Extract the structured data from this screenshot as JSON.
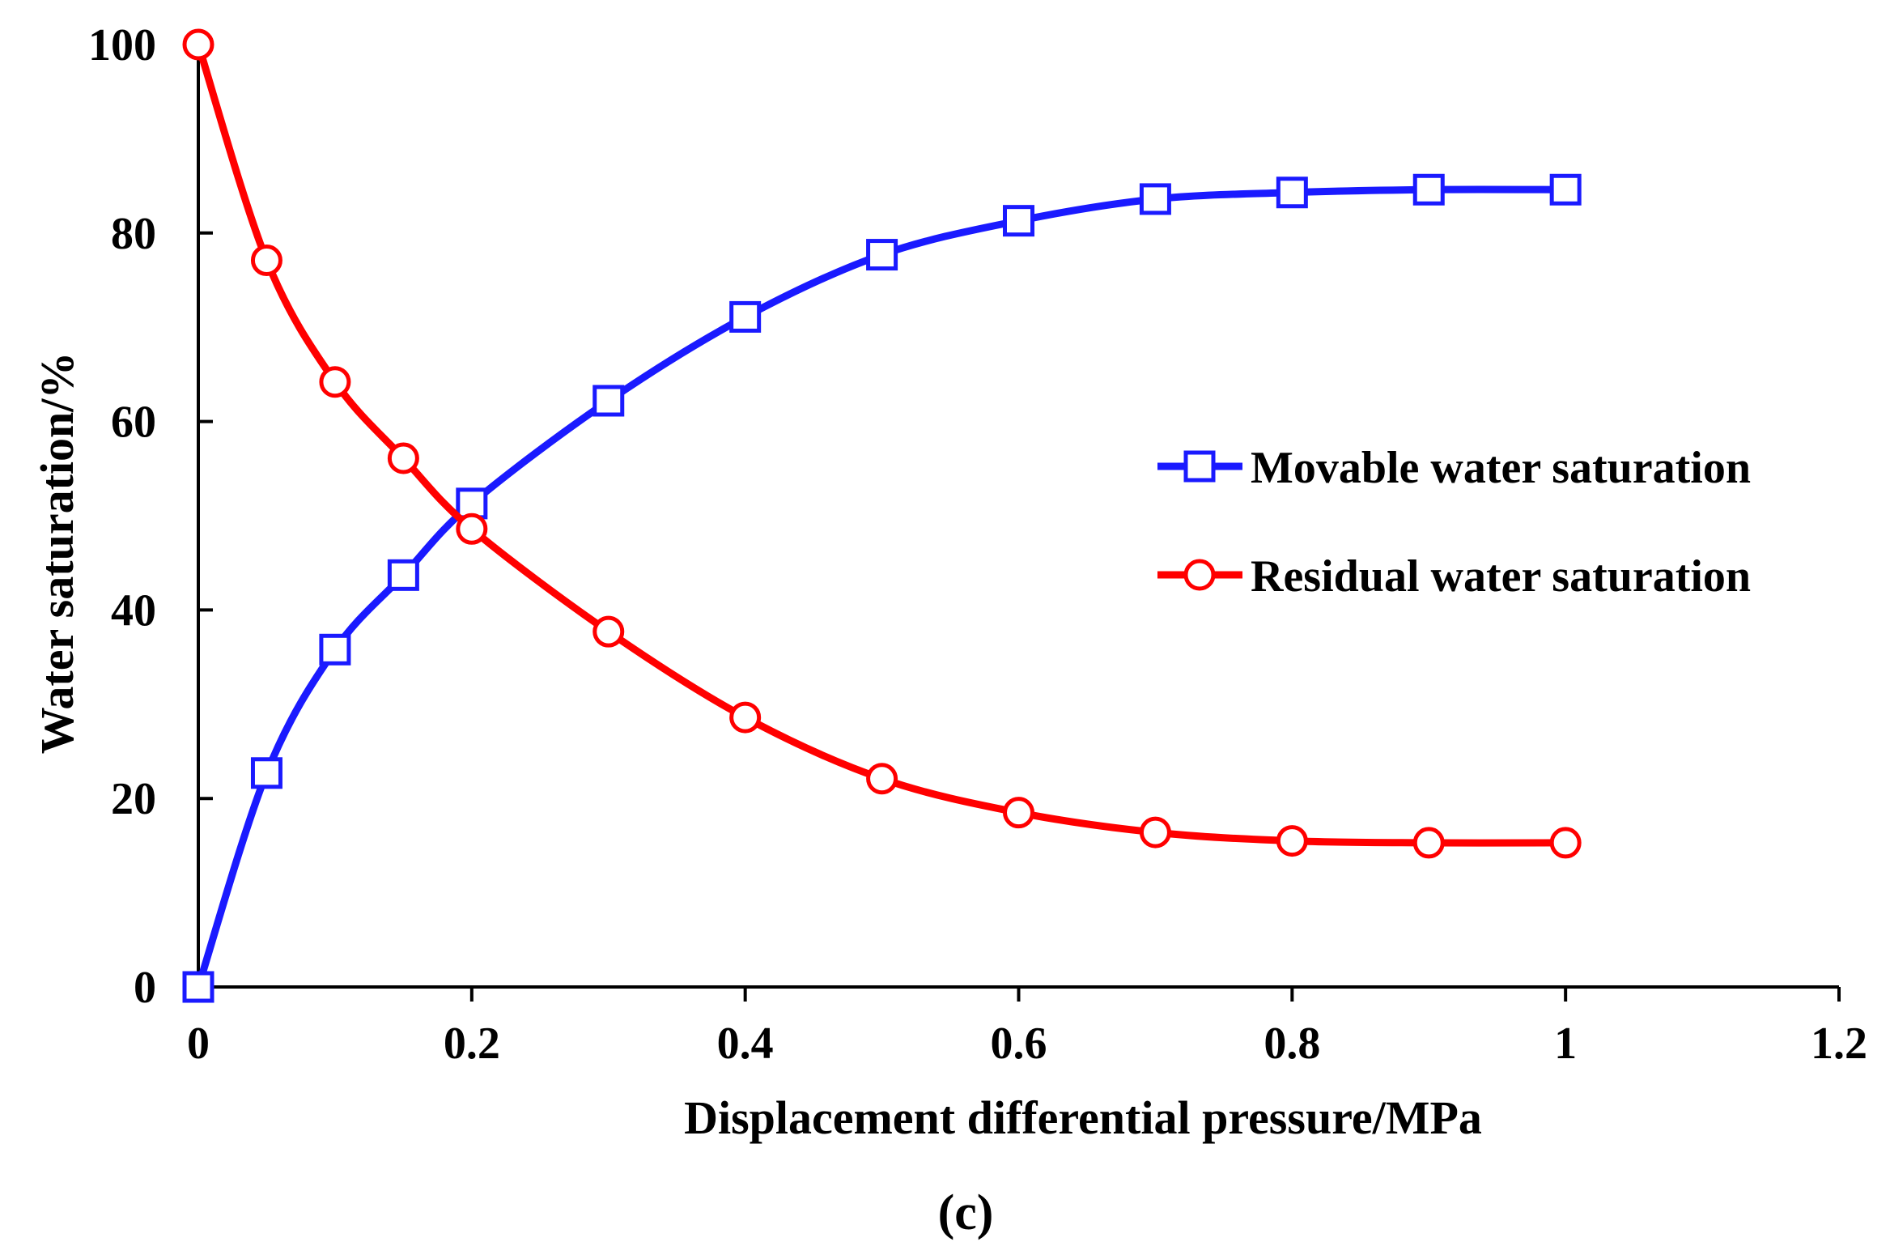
{
  "chart_data": {
    "type": "line",
    "title": "",
    "xlabel": "Displacement differential pressure/MPa",
    "ylabel": "Water saturation/%",
    "xlim": [
      0,
      1.2
    ],
    "ylim": [
      0,
      100
    ],
    "xticks": [
      0,
      0.2,
      0.4,
      0.6,
      0.8,
      1,
      1.2
    ],
    "xtick_labels": [
      "0",
      "0.2",
      "0.4",
      "0.6",
      "0.8",
      "1",
      "1.2"
    ],
    "yticks": [
      0,
      20,
      40,
      60,
      80,
      100
    ],
    "ytick_labels": [
      "0",
      "20",
      "40",
      "60",
      "80",
      "100"
    ],
    "grid": false,
    "legend_position": "right",
    "caption": "(c)",
    "series": [
      {
        "name": "Movable water saturation",
        "color": "#1a1aff",
        "marker": "square",
        "x": [
          0,
          0.05,
          0.1,
          0.15,
          0.2,
          0.3,
          0.4,
          0.5,
          0.6,
          0.7,
          0.8,
          0.9,
          1.0
        ],
        "values": [
          0,
          22.7,
          35.8,
          43.7,
          51.3,
          62.2,
          71.1,
          77.7,
          81.3,
          83.6,
          84.3,
          84.6,
          84.6
        ]
      },
      {
        "name": "Residual water saturation",
        "color": "#ff0000",
        "marker": "circle",
        "x": [
          0,
          0.05,
          0.1,
          0.15,
          0.2,
          0.3,
          0.4,
          0.5,
          0.6,
          0.7,
          0.8,
          0.9,
          1.0
        ],
        "values": [
          100,
          77.1,
          64.2,
          56.1,
          48.6,
          37.7,
          28.6,
          22.1,
          18.5,
          16.4,
          15.5,
          15.3,
          15.3
        ]
      }
    ]
  }
}
